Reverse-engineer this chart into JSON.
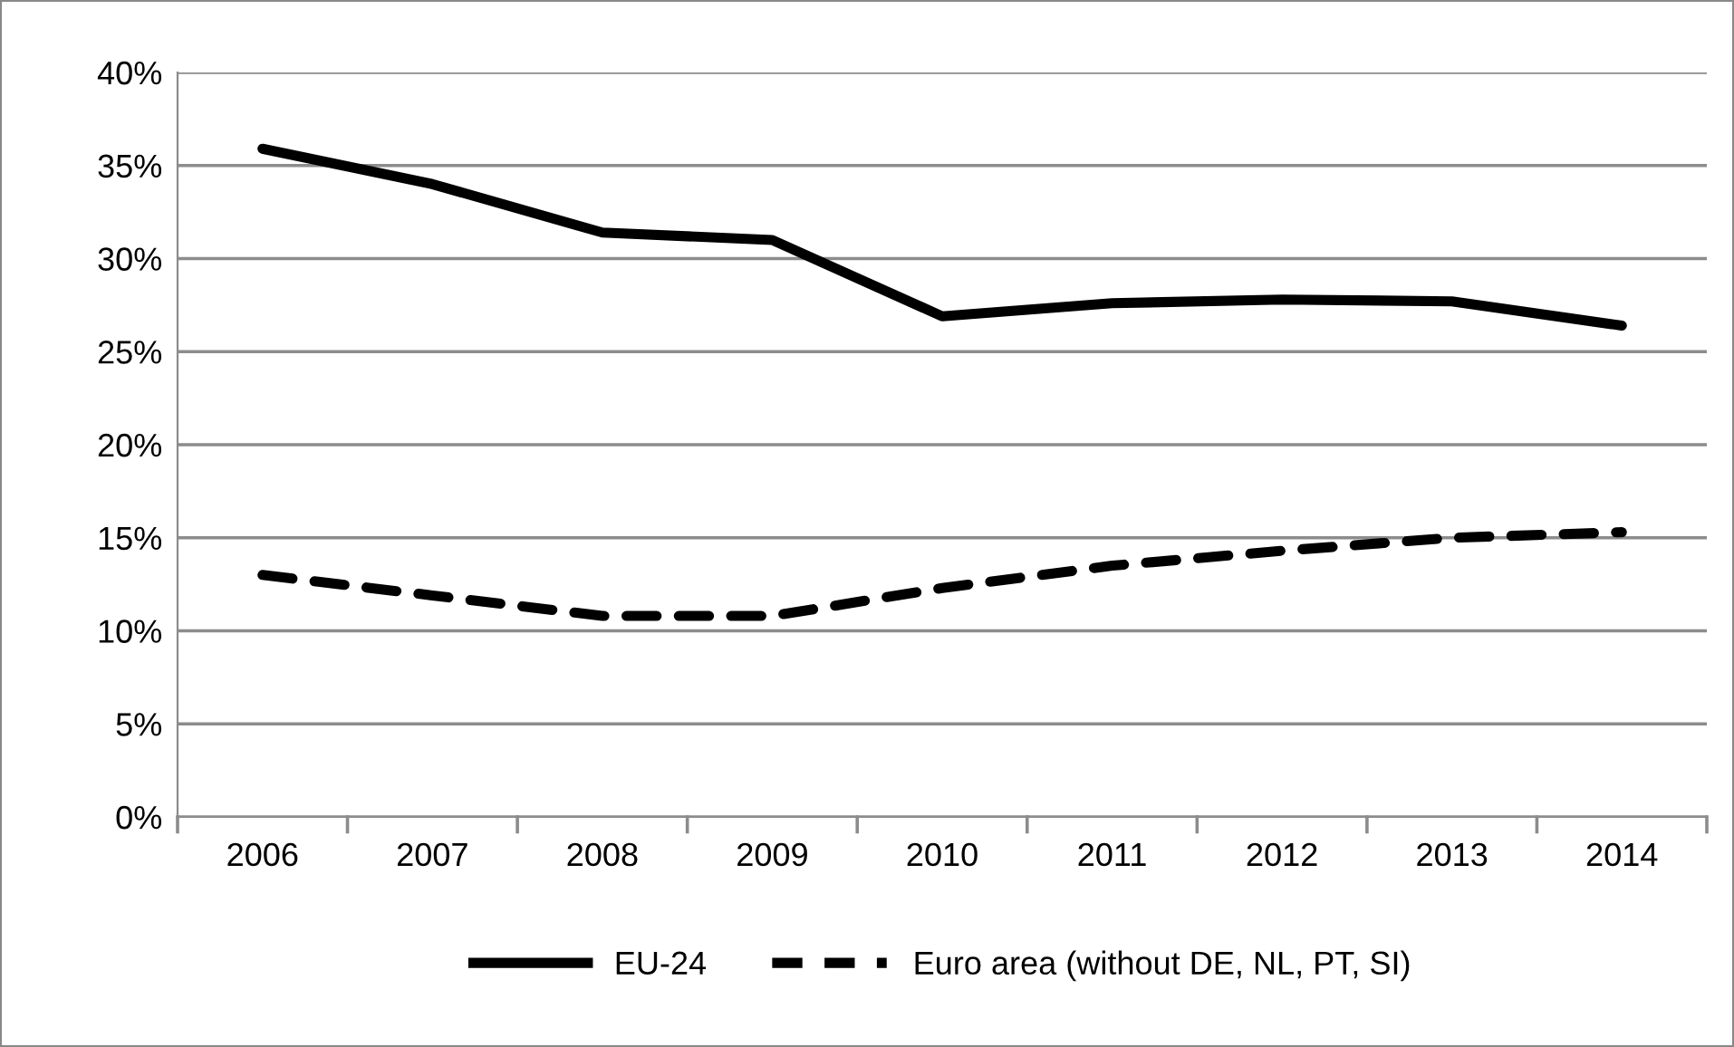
{
  "chart_data": {
    "type": "line",
    "categories": [
      "2006",
      "2007",
      "2008",
      "2009",
      "2010",
      "2011",
      "2012",
      "2013",
      "2014"
    ],
    "series": [
      {
        "name": "EU-24",
        "color": "#000000",
        "line_style": "solid",
        "values": [
          35.9,
          34.0,
          31.4,
          31.0,
          26.9,
          27.6,
          27.8,
          27.7,
          26.4
        ]
      },
      {
        "name": "Euro area (without DE, NL, PT, SI)",
        "color": "#000000",
        "line_style": "dashed",
        "values": [
          13.0,
          11.9,
          10.8,
          10.8,
          12.3,
          13.5,
          14.3,
          15.0,
          15.3
        ]
      }
    ],
    "ylim": [
      0,
      40
    ],
    "yticks": [
      {
        "value": 0,
        "label": "0%"
      },
      {
        "value": 5,
        "label": "5%"
      },
      {
        "value": 10,
        "label": "10%"
      },
      {
        "value": 15,
        "label": "15%"
      },
      {
        "value": 20,
        "label": "20%"
      },
      {
        "value": 25,
        "label": "25%"
      },
      {
        "value": 30,
        "label": "30%"
      },
      {
        "value": 35,
        "label": "35%"
      },
      {
        "value": 40,
        "label": "40%"
      }
    ],
    "grid": "y",
    "legend": "bottom",
    "marker": "none"
  }
}
